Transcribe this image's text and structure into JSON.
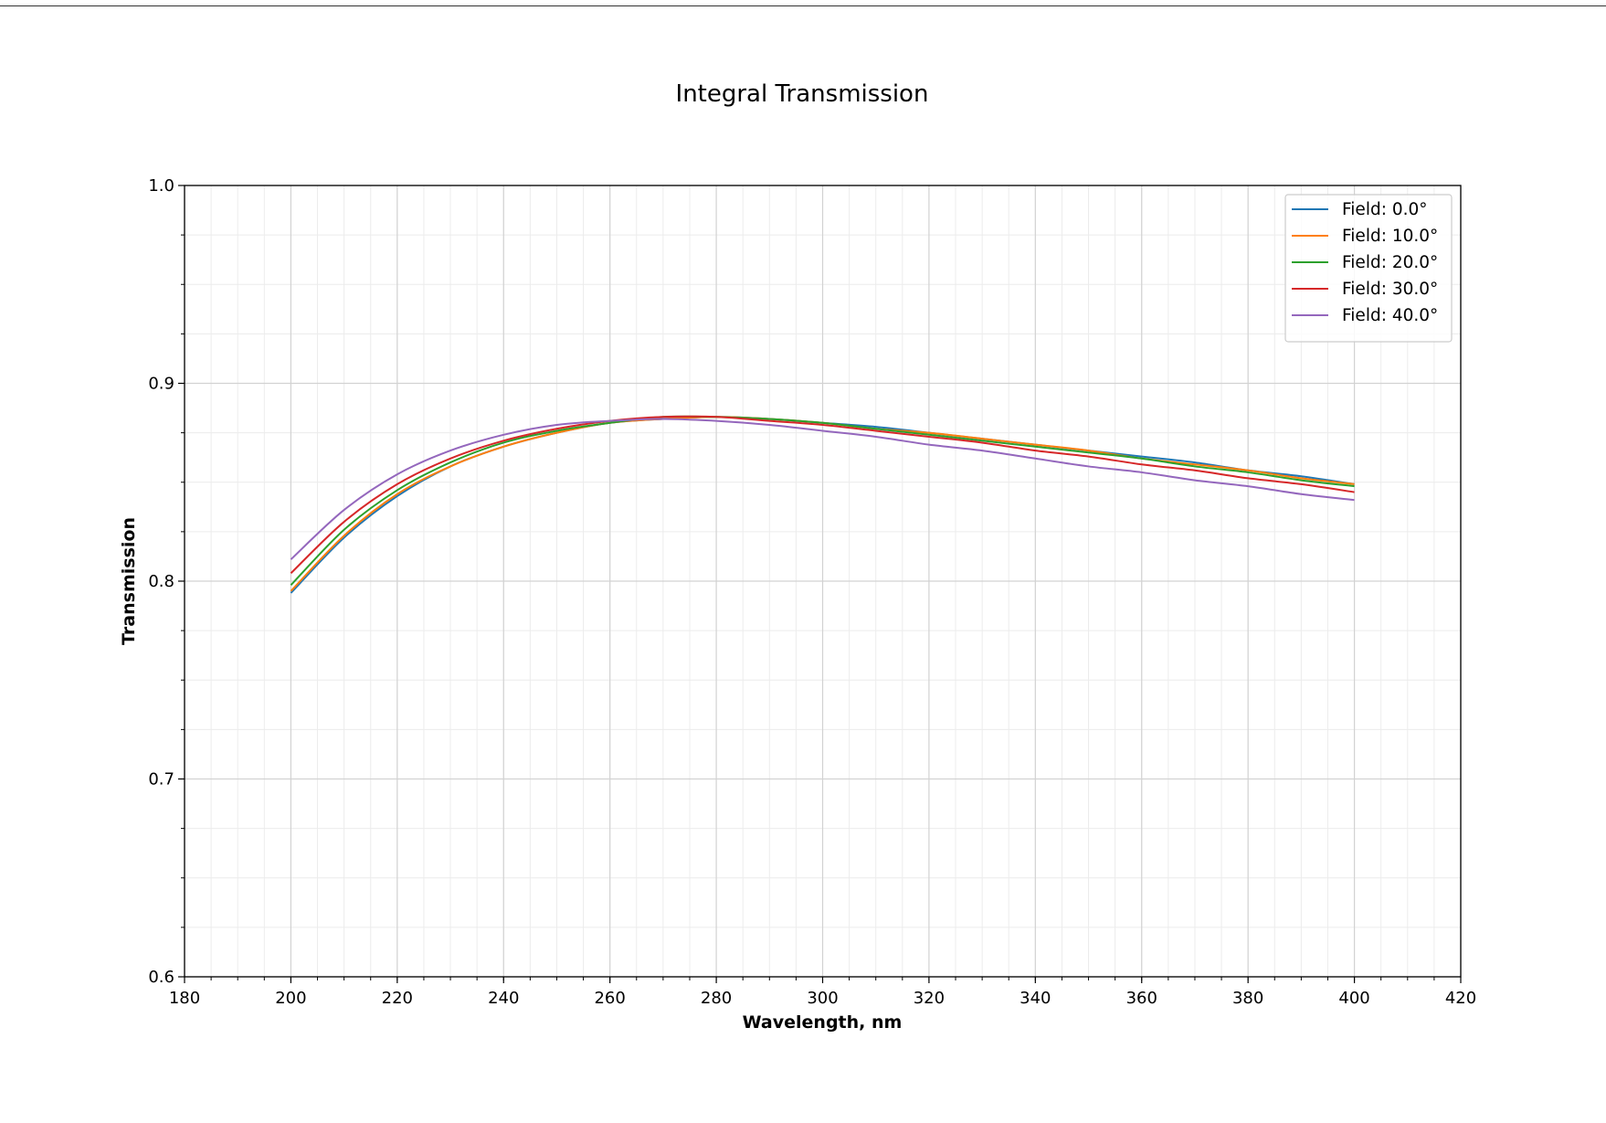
{
  "chart_data": {
    "type": "line",
    "title": "Integral Transmission",
    "xlabel": "Wavelength, nm",
    "ylabel": "Transmission",
    "xlim": [
      180,
      420
    ],
    "ylim": [
      0.6,
      1.0
    ],
    "x_major_ticks": [
      180,
      200,
      220,
      240,
      260,
      280,
      300,
      320,
      340,
      360,
      380,
      400,
      420
    ],
    "x_tick_labels": [
      "180",
      "200",
      "220",
      "240",
      "260",
      "280",
      "300",
      "320",
      "340",
      "360",
      "380",
      "400",
      "420"
    ],
    "y_major_ticks": [
      0.6,
      0.7,
      0.8,
      0.9,
      1.0
    ],
    "y_tick_labels": [
      "0.6",
      "0.7",
      "0.8",
      "0.9",
      "1.0"
    ],
    "grid": "major and minor",
    "legend_position": "upper right",
    "x": [
      200,
      210,
      220,
      230,
      240,
      250,
      260,
      270,
      280,
      290,
      300,
      310,
      320,
      330,
      340,
      350,
      360,
      370,
      380,
      390,
      400
    ],
    "series": [
      {
        "name": "Field: 0.0°",
        "color": "#1f77b4",
        "values": [
          0.794,
          0.822,
          0.843,
          0.858,
          0.868,
          0.875,
          0.88,
          0.882,
          0.883,
          0.882,
          0.88,
          0.878,
          0.875,
          0.872,
          0.869,
          0.866,
          0.863,
          0.86,
          0.856,
          0.853,
          0.849
        ]
      },
      {
        "name": "Field: 10.0°",
        "color": "#ff7f0e",
        "values": [
          0.795,
          0.823,
          0.844,
          0.858,
          0.868,
          0.875,
          0.88,
          0.882,
          0.883,
          0.882,
          0.88,
          0.877,
          0.875,
          0.872,
          0.869,
          0.866,
          0.862,
          0.859,
          0.856,
          0.852,
          0.849
        ]
      },
      {
        "name": "Field: 20.0°",
        "color": "#2ca02c",
        "values": [
          0.798,
          0.826,
          0.846,
          0.86,
          0.87,
          0.876,
          0.88,
          0.883,
          0.883,
          0.882,
          0.88,
          0.877,
          0.874,
          0.871,
          0.868,
          0.865,
          0.862,
          0.858,
          0.855,
          0.851,
          0.848
        ]
      },
      {
        "name": "Field: 30.0°",
        "color": "#d62728",
        "values": [
          0.804,
          0.83,
          0.849,
          0.862,
          0.871,
          0.877,
          0.881,
          0.883,
          0.883,
          0.881,
          0.879,
          0.876,
          0.873,
          0.87,
          0.866,
          0.863,
          0.859,
          0.856,
          0.852,
          0.849,
          0.845
        ]
      },
      {
        "name": "Field: 40.0°",
        "color": "#9467bd",
        "values": [
          0.811,
          0.836,
          0.854,
          0.866,
          0.874,
          0.879,
          0.881,
          0.882,
          0.881,
          0.879,
          0.876,
          0.873,
          0.869,
          0.866,
          0.862,
          0.858,
          0.855,
          0.851,
          0.848,
          0.844,
          0.841
        ]
      }
    ]
  }
}
